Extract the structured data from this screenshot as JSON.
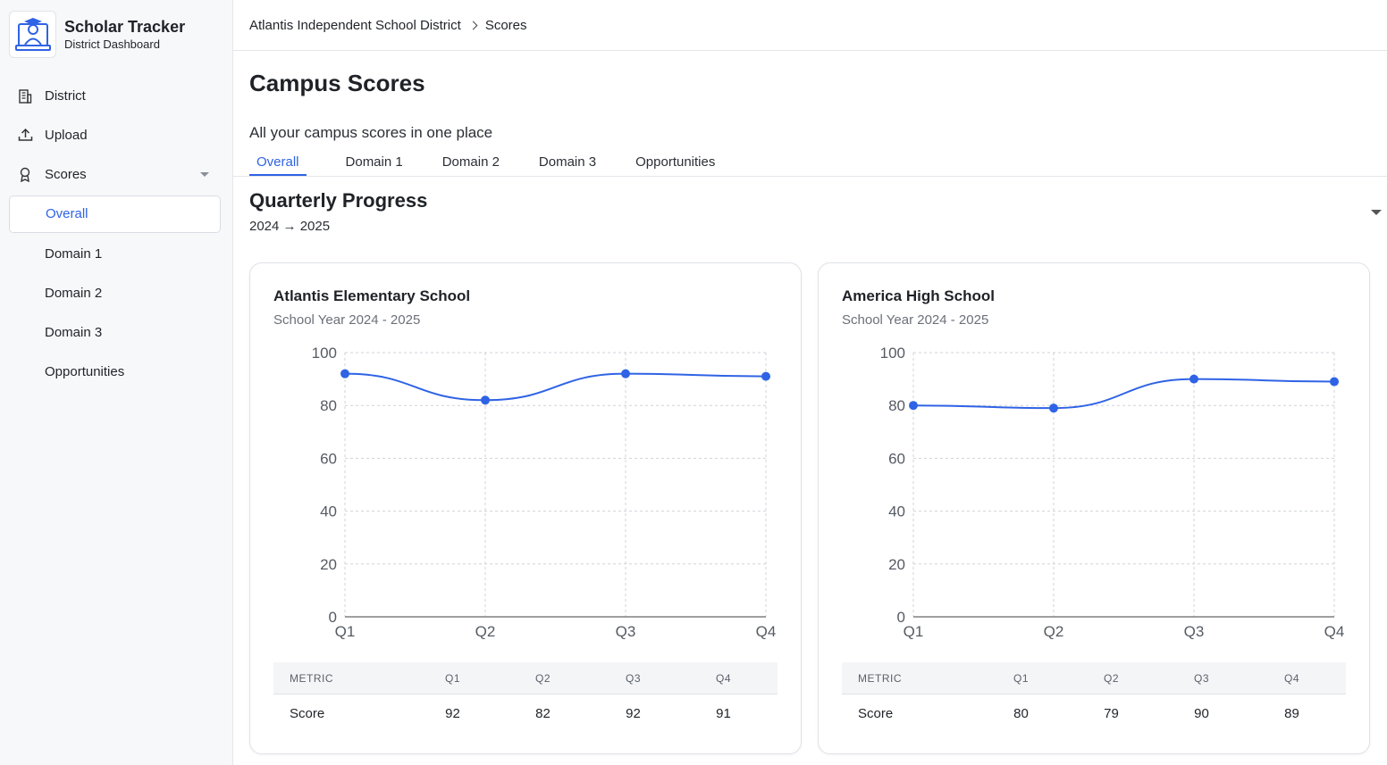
{
  "app": {
    "title": "Scholar Tracker",
    "subtitle": "District Dashboard",
    "logo_icon": "graduate-user-icon"
  },
  "sidebar": {
    "items": [
      {
        "label": "District",
        "icon": "building-icon"
      },
      {
        "label": "Upload",
        "icon": "upload-icon"
      },
      {
        "label": "Scores",
        "icon": "award-icon"
      }
    ],
    "scores_sub": [
      {
        "label": "Overall",
        "active": true
      },
      {
        "label": "Domain 1"
      },
      {
        "label": "Domain 2"
      },
      {
        "label": "Domain 3"
      },
      {
        "label": "Opportunities"
      }
    ]
  },
  "breadcrumb": {
    "district": "Atlantis Independent School District",
    "current": "Scores"
  },
  "page": {
    "title": "Campus Scores",
    "subtitle": "All your campus scores in one place"
  },
  "tabs": [
    "Overall",
    "Domain 1",
    "Domain 2",
    "Domain 3",
    "Opportunities"
  ],
  "section": {
    "title": "Quarterly Progress",
    "subtitle": "2024 → 2025"
  },
  "accent_color": "#2f63e5",
  "cards": [
    {
      "title": "Atlantis Elementary School",
      "subtitle": "School Year 2024 - 2025",
      "table": {
        "header": [
          "METRIC",
          "Q1",
          "Q2",
          "Q3",
          "Q4"
        ],
        "row": [
          "Score",
          "92",
          "82",
          "92",
          "91"
        ]
      }
    },
    {
      "title": "America High School",
      "subtitle": "School Year 2024 - 2025",
      "table": {
        "header": [
          "METRIC",
          "Q1",
          "Q2",
          "Q3",
          "Q4"
        ],
        "row": [
          "Score",
          "80",
          "79",
          "90",
          "89"
        ]
      }
    }
  ],
  "chart_data": [
    {
      "type": "line",
      "categories": [
        "Q1",
        "Q2",
        "Q3",
        "Q4"
      ],
      "series": [
        {
          "values": [
            92,
            82,
            92,
            91
          ]
        }
      ],
      "ylim": [
        0,
        100
      ],
      "yticks": [
        0,
        20,
        40,
        60,
        80,
        100
      ],
      "grid": true
    },
    {
      "type": "line",
      "categories": [
        "Q1",
        "Q2",
        "Q3",
        "Q4"
      ],
      "series": [
        {
          "values": [
            80,
            79,
            90,
            89
          ]
        }
      ],
      "ylim": [
        0,
        100
      ],
      "yticks": [
        0,
        20,
        40,
        60,
        80,
        100
      ],
      "grid": true
    }
  ]
}
